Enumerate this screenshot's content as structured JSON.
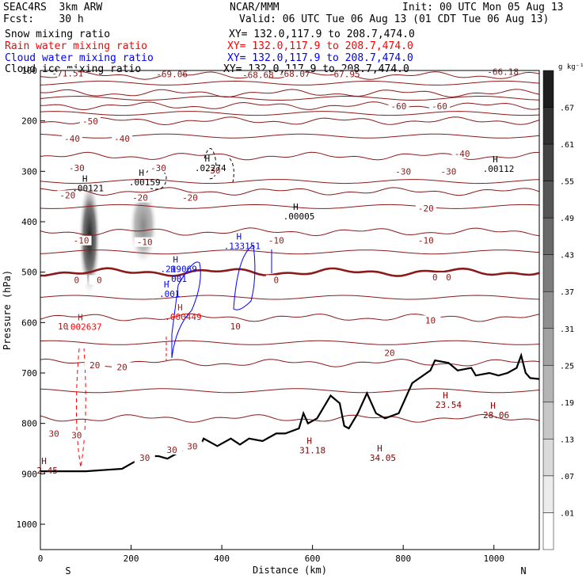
{
  "header": {
    "left": [
      "SEAC4RS  3km ARW",
      "Fcst:    30 h"
    ],
    "center": "NCAR/MMM",
    "init": "Init: 00 UTC Mon 05 Aug 13",
    "valid": "Valid: 06 UTC Tue 06 Aug 13 (01 CDT Tue 06 Aug 13)",
    "fields": [
      {
        "name": "Snow mixing ratio",
        "xy": "",
        "color": "#000000"
      },
      {
        "name": "Rain water mixing ratio",
        "xy": "XY= 132.0,117.9 to 208.7,474.0",
        "color": "#ff0000"
      },
      {
        "name": "Cloud water mixing ratio",
        "xy": "XY= 132.0,117.9 to 208.7,474.0",
        "color": "#0000ff"
      },
      {
        "name": "Cloud ice mixing ratio",
        "xy": "XY= 132.0,117.9 to 208.7,474.0",
        "color": "#000000"
      }
    ],
    "xy_line1": "XY= 132.0,117.9 to 208.7,474.0"
  },
  "chart_data": {
    "type": "contour-cross-section",
    "xlabel": "Distance (km)",
    "ylabel": "Pressure (hPa)",
    "xlim": [
      0,
      1100
    ],
    "ylim": [
      1050,
      100
    ],
    "x_ticks": [
      0,
      200,
      400,
      600,
      800,
      1000
    ],
    "y_ticks": [
      100,
      200,
      300,
      400,
      500,
      600,
      700,
      800,
      900,
      1000
    ],
    "x_endpoints": {
      "left": "S",
      "right": "N"
    },
    "colorbar": {
      "units": "g kg⁻¹",
      "levels": [
        ".01",
        ".07",
        ".13",
        ".19",
        ".25",
        ".31",
        ".37",
        ".43",
        ".49",
        ".55",
        ".61",
        ".67"
      ]
    },
    "temperature_contours": [
      {
        "value": -70,
        "pressure": 110
      },
      {
        "value": -60,
        "pressure": 145
      },
      {
        "value": -50,
        "pressure": 170
      },
      {
        "value": -40,
        "pressure": 200
      },
      {
        "value": -30,
        "pressure": 270
      },
      {
        "value": -20,
        "pressure": 340
      },
      {
        "value": -10,
        "pressure": 420
      },
      {
        "value": 0,
        "pressure": 500,
        "highlight": true
      },
      {
        "value": 10,
        "pressure": 590
      },
      {
        "value": 20,
        "pressure": 680
      },
      {
        "value": 30,
        "pressure": 790
      }
    ],
    "contour_labels": [
      {
        "text": "-71.51",
        "x": 60,
        "p": 110
      },
      {
        "text": "-69.06",
        "x": 290,
        "p": 112
      },
      {
        "text": "-68.68",
        "x": 480,
        "p": 113
      },
      {
        "text": "-68.07",
        "x": 560,
        "p": 111
      },
      {
        "text": "-67.95",
        "x": 670,
        "p": 112
      },
      {
        "text": "-66.18",
        "x": 1020,
        "p": 107
      },
      {
        "text": "-60",
        "x": 790,
        "p": 175
      },
      {
        "text": "-60",
        "x": 880,
        "p": 175
      },
      {
        "text": "-50",
        "x": 110,
        "p": 205
      },
      {
        "text": "-40",
        "x": 70,
        "p": 240
      },
      {
        "text": "-40",
        "x": 180,
        "p": 240
      },
      {
        "text": "-40",
        "x": 930,
        "p": 270
      },
      {
        "text": "-30",
        "x": 80,
        "p": 298
      },
      {
        "text": "-30",
        "x": 260,
        "p": 298
      },
      {
        "text": "-30",
        "x": 380,
        "p": 303
      },
      {
        "text": "-30",
        "x": 800,
        "p": 305
      },
      {
        "text": "-30",
        "x": 900,
        "p": 305
      },
      {
        "text": "-20",
        "x": 60,
        "p": 352
      },
      {
        "text": "-20",
        "x": 220,
        "p": 357
      },
      {
        "text": "-20",
        "x": 330,
        "p": 357
      },
      {
        "text": "-20",
        "x": 850,
        "p": 378
      },
      {
        "text": "-10",
        "x": 90,
        "p": 442
      },
      {
        "text": "-10",
        "x": 230,
        "p": 445
      },
      {
        "text": "-10",
        "x": 520,
        "p": 442
      },
      {
        "text": "-10",
        "x": 850,
        "p": 442
      },
      {
        "text": "0",
        "x": 80,
        "p": 520
      },
      {
        "text": "0",
        "x": 130,
        "p": 520
      },
      {
        "text": "0",
        "x": 520,
        "p": 520
      },
      {
        "text": "0",
        "x": 870,
        "p": 515
      },
      {
        "text": "0",
        "x": 900,
        "p": 515
      },
      {
        "text": "10",
        "x": 50,
        "p": 612
      },
      {
        "text": "10",
        "x": 430,
        "p": 612
      },
      {
        "text": "10",
        "x": 860,
        "p": 600
      },
      {
        "text": "20",
        "x": 120,
        "p": 689
      },
      {
        "text": "20",
        "x": 180,
        "p": 693
      },
      {
        "text": "20",
        "x": 770,
        "p": 665
      },
      {
        "text": "30",
        "x": 30,
        "p": 825
      },
      {
        "text": "30",
        "x": 80,
        "p": 828
      },
      {
        "text": "30",
        "x": 290,
        "p": 857
      },
      {
        "text": "30",
        "x": 335,
        "p": 850
      },
      {
        "text": "30",
        "x": 230,
        "p": 873
      }
    ],
    "extrema": [
      {
        "text": ".00121",
        "x": 105,
        "p": 330,
        "color": "#000000"
      },
      {
        "text": ".00159",
        "x": 230,
        "p": 318,
        "color": "#000000"
      },
      {
        "text": ".02274",
        "x": 375,
        "p": 290,
        "color": "#000000"
      },
      {
        "text": ".00112",
        "x": 1010,
        "p": 292,
        "color": "#000000"
      },
      {
        "text": ".00005",
        "x": 570,
        "p": 386,
        "color": "#000000"
      },
      {
        "text": ".133151",
        "x": 445,
        "p": 445,
        "color": "#0000ff"
      },
      {
        "text": ".219069",
        "x": 305,
        "p": 490,
        "color": "#0000ff"
      },
      {
        "text": ".001",
        "x": 300,
        "p": 510,
        "color": "#0000ff"
      },
      {
        "text": ".001",
        "x": 285,
        "p": 540,
        "color": "#0000ff"
      },
      {
        "text": ".000449",
        "x": 315,
        "p": 585,
        "color": "#ff0000"
      },
      {
        "text": ".002637",
        "x": 95,
        "p": 605,
        "color": "#ff0000"
      },
      {
        "text": "23.54",
        "x": 900,
        "p": 760,
        "color": "#8b0000"
      },
      {
        "text": "28.06",
        "x": 1005,
        "p": 780,
        "color": "#8b0000"
      },
      {
        "text": "31.18",
        "x": 600,
        "p": 850,
        "color": "#8b0000"
      },
      {
        "text": "34.05",
        "x": 755,
        "p": 865,
        "color": "#8b0000"
      },
      {
        "text": "2.45",
        "x": 15,
        "p": 890,
        "color": "#8b0000"
      }
    ],
    "terrain_pressure": [
      [
        0,
        895
      ],
      [
        100,
        895
      ],
      [
        180,
        890
      ],
      [
        200,
        880
      ],
      [
        230,
        865
      ],
      [
        260,
        865
      ],
      [
        280,
        870
      ],
      [
        300,
        860
      ],
      [
        330,
        845
      ],
      [
        350,
        850
      ],
      [
        360,
        830
      ],
      [
        390,
        845
      ],
      [
        420,
        830
      ],
      [
        440,
        842
      ],
      [
        460,
        830
      ],
      [
        490,
        835
      ],
      [
        520,
        820
      ],
      [
        540,
        820
      ],
      [
        570,
        810
      ],
      [
        580,
        780
      ],
      [
        590,
        800
      ],
      [
        610,
        790
      ],
      [
        640,
        745
      ],
      [
        660,
        760
      ],
      [
        670,
        805
      ],
      [
        680,
        810
      ],
      [
        700,
        780
      ],
      [
        720,
        740
      ],
      [
        740,
        780
      ],
      [
        760,
        790
      ],
      [
        790,
        780
      ],
      [
        820,
        720
      ],
      [
        860,
        695
      ],
      [
        870,
        675
      ],
      [
        900,
        680
      ],
      [
        920,
        695
      ],
      [
        950,
        690
      ],
      [
        960,
        705
      ],
      [
        990,
        700
      ],
      [
        1010,
        705
      ],
      [
        1030,
        700
      ],
      [
        1050,
        690
      ],
      [
        1060,
        665
      ],
      [
        1070,
        700
      ],
      [
        1080,
        710
      ],
      [
        1100,
        712
      ]
    ]
  }
}
